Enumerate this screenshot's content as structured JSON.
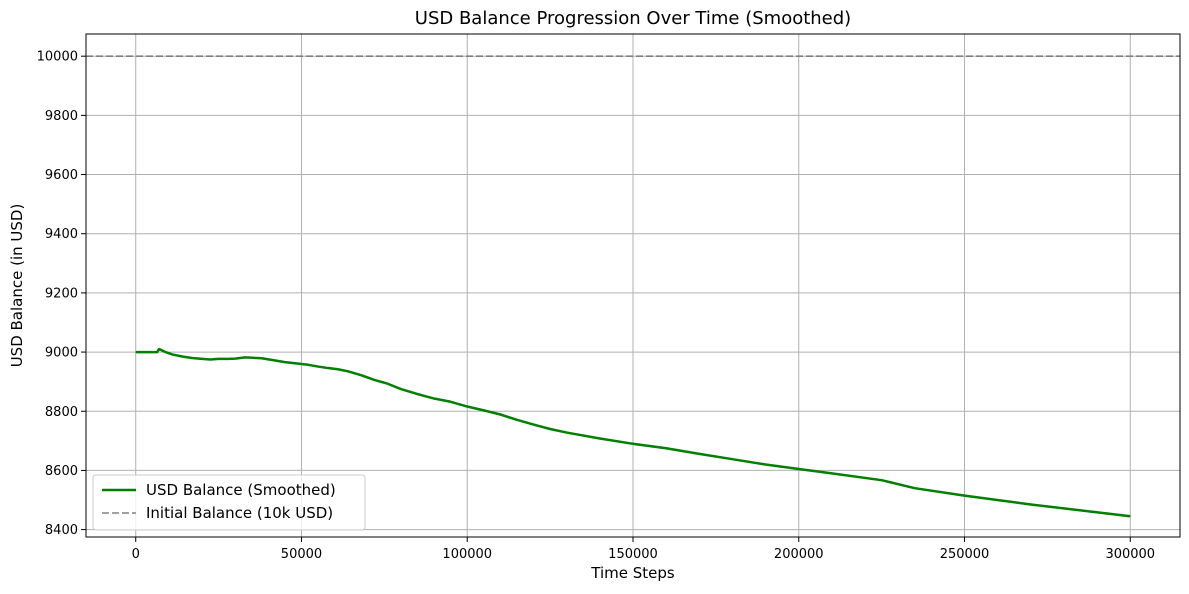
{
  "chart_data": {
    "type": "line",
    "title": "USD Balance Progression Over Time (Smoothed)",
    "xlabel": "Time Steps",
    "ylabel": "USD Balance (in USD)",
    "xlim": [
      -15000,
      315000
    ],
    "ylim": [
      8375,
      10075
    ],
    "xticks": [
      0,
      50000,
      100000,
      150000,
      200000,
      250000,
      300000
    ],
    "yticks": [
      8400,
      8600,
      8800,
      9000,
      9200,
      9400,
      9600,
      9800,
      10000
    ],
    "grid": true,
    "legend_position": "lower-left",
    "series": [
      {
        "name": "USD Balance (Smoothed)",
        "color": "#008000",
        "style": "solid",
        "x": [
          0,
          3000,
          6500,
          7000,
          7500,
          9000,
          11000,
          14000,
          17000,
          20000,
          22500,
          25000,
          28000,
          30000,
          33000,
          38000,
          45000,
          52000,
          55000,
          58000,
          61000,
          64000,
          68000,
          72000,
          76000,
          80000,
          85000,
          90000,
          95000,
          100000,
          105000,
          110000,
          115000,
          120000,
          125000,
          130000,
          140000,
          150000,
          160000,
          170000,
          180000,
          190000,
          200000,
          210000,
          225000,
          235000,
          250000,
          270000,
          300000
        ],
        "y": [
          9000,
          9000,
          9000,
          9010,
          9008,
          9000,
          8992,
          8985,
          8980,
          8977,
          8975,
          8977,
          8977,
          8978,
          8982,
          8979,
          8966,
          8957,
          8951,
          8946,
          8942,
          8935,
          8922,
          8906,
          8893,
          8875,
          8858,
          8843,
          8832,
          8816,
          8803,
          8789,
          8771,
          8755,
          8740,
          8728,
          8708,
          8690,
          8675,
          8656,
          8638,
          8620,
          8605,
          8590,
          8567,
          8540,
          8515,
          8485,
          8445
        ]
      },
      {
        "name": "Initial Balance (10k USD)",
        "color": "#808080",
        "style": "dashed",
        "y_constant": 10000
      }
    ]
  }
}
